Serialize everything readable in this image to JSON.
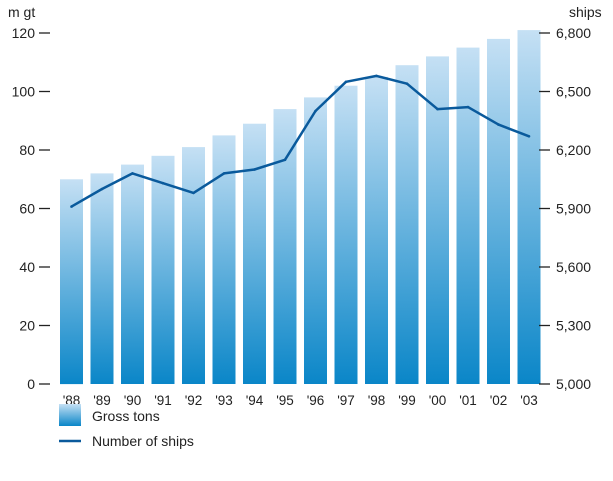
{
  "chart_data": {
    "type": "bar",
    "categories": [
      "'88",
      "'89",
      "'90",
      "'91",
      "'92",
      "'93",
      "'94",
      "'95",
      "'96",
      "'97",
      "'98",
      "'99",
      "'00",
      "'01",
      "'02",
      "'03"
    ],
    "series": [
      {
        "name": "Gross tons",
        "type": "bar",
        "axis": "left",
        "values": [
          70,
          72,
          75,
          78,
          81,
          85,
          89,
          94,
          98,
          102,
          105,
          109,
          112,
          115,
          118,
          121
        ]
      },
      {
        "name": "Number of ships",
        "type": "line",
        "axis": "right",
        "values": [
          5910,
          6000,
          6080,
          6030,
          5980,
          6080,
          6100,
          6150,
          6400,
          6550,
          6580,
          6540,
          6410,
          6420,
          6330,
          6270
        ]
      }
    ],
    "y_left": {
      "unit_label": "m gt",
      "ylim": [
        0,
        120
      ],
      "ticks": [
        0,
        20,
        40,
        60,
        80,
        100,
        120
      ],
      "tick_labels": [
        "0",
        "20",
        "40",
        "60",
        "80",
        "100",
        "120"
      ]
    },
    "y_right": {
      "unit_label": "ships",
      "ylim": [
        5000,
        6800
      ],
      "ticks": [
        5000,
        5300,
        5600,
        5900,
        6200,
        6500,
        6800
      ],
      "tick_labels": [
        "5,000",
        "5,300",
        "5,600",
        "5,900",
        "6,200",
        "6,500",
        "6,800"
      ]
    },
    "legend": {
      "placement": "bottom-left",
      "entries": [
        "Gross tons",
        "Number of ships"
      ]
    },
    "colors": {
      "bar_top": "#c5e0f4",
      "bar_bottom": "#0a86c8",
      "line": "#0a5a9c",
      "axis": "#222222"
    },
    "grid": false
  }
}
